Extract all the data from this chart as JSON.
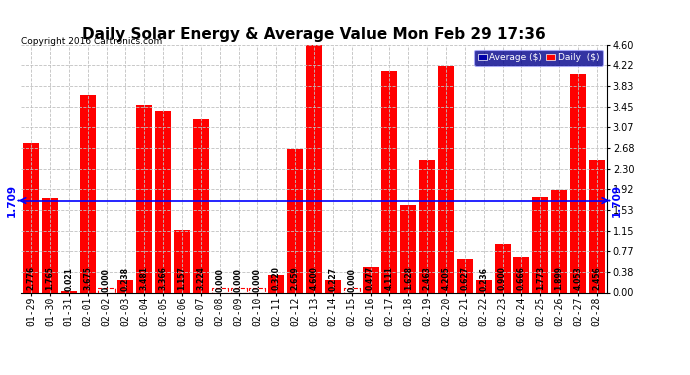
{
  "title": "Daily Solar Energy & Average Value Mon Feb 29 17:36",
  "copyright": "Copyright 2016 Cartronics.com",
  "categories": [
    "01-29",
    "01-30",
    "01-31",
    "02-01",
    "02-02",
    "02-03",
    "02-04",
    "02-05",
    "02-06",
    "02-07",
    "02-08",
    "02-09",
    "02-10",
    "02-11",
    "02-12",
    "02-13",
    "02-14",
    "02-15",
    "02-16",
    "02-17",
    "02-18",
    "02-19",
    "02-20",
    "02-21",
    "02-22",
    "02-23",
    "02-24",
    "02-25",
    "02-26",
    "02-27",
    "02-28"
  ],
  "values": [
    2.776,
    1.765,
    0.021,
    3.675,
    0.0,
    0.238,
    3.481,
    3.366,
    1.157,
    3.224,
    0.0,
    0.0,
    0.0,
    0.32,
    2.659,
    4.6,
    0.227,
    0.0,
    0.477,
    4.111,
    1.628,
    2.463,
    4.205,
    0.627,
    0.236,
    0.9,
    0.666,
    1.773,
    1.899,
    4.053,
    2.456
  ],
  "average": 1.709,
  "bar_color": "#FF0000",
  "avg_line_color": "#0000FF",
  "background_color": "#FFFFFF",
  "plot_bg_color": "#FFFFFF",
  "grid_color": "#C0C0C0",
  "ylim": [
    0,
    4.6
  ],
  "yticks": [
    0.0,
    0.38,
    0.77,
    1.15,
    1.53,
    1.92,
    2.3,
    2.68,
    3.07,
    3.45,
    3.83,
    4.22,
    4.6
  ],
  "title_fontsize": 11,
  "tick_fontsize": 7,
  "avg_label": "1.709",
  "legend_avg_label": "Average ($)",
  "legend_daily_label": "Daily  ($)"
}
